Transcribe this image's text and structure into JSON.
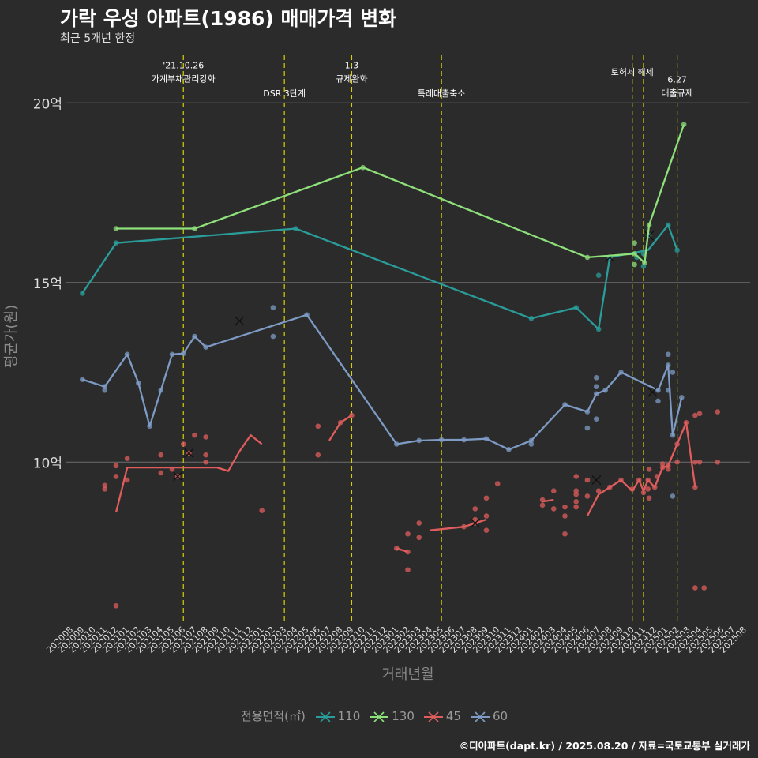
{
  "title": "가락 우성 아파트(1986) 매매가격 변화",
  "subtitle": "최근 5개년 한정",
  "caption": "©디아파트(dapt.kr) / 2025.08.20 / 자료=국토교통부 실거래가",
  "chart_data": {
    "type": "line",
    "xlabel": "거래년월",
    "ylabel": "평균가(원)",
    "y_unit": "억",
    "ylim": [
      5.5,
      21.5
    ],
    "yticks": [
      10,
      15,
      20
    ],
    "ytick_labels": [
      "10억",
      "15억",
      "20억"
    ],
    "x": [
      "202008",
      "202009",
      "202010",
      "202011",
      "202012",
      "202101",
      "202102",
      "202103",
      "202104",
      "202105",
      "202106",
      "202107",
      "202108",
      "202109",
      "202110",
      "202111",
      "202112",
      "202201",
      "202202",
      "202203",
      "202204",
      "202205",
      "202206",
      "202207",
      "202208",
      "202209",
      "202210",
      "202211",
      "202212",
      "202301",
      "202302",
      "202303",
      "202304",
      "202305",
      "202306",
      "202307",
      "202308",
      "202309",
      "202310",
      "202311",
      "202312",
      "202401",
      "202402",
      "202403",
      "202404",
      "202405",
      "202406",
      "202407",
      "202408",
      "202409",
      "202410",
      "202411",
      "202412",
      "202501",
      "202502",
      "202503",
      "202504",
      "202505",
      "202506",
      "202507",
      "202508"
    ],
    "grid": true,
    "legend": {
      "title": "전용면적(㎡)",
      "position": "bottom",
      "marker": "x"
    },
    "events": [
      {
        "x": 10.0,
        "label": "'21.10.26\n가계부채관리강화",
        "row": 0
      },
      {
        "x": 19.0,
        "label": "DSR 3단계",
        "row": 1
      },
      {
        "x": 25.0,
        "label": "1.3\n규제완화",
        "row": 0
      },
      {
        "x": 33.0,
        "label": "특례대출축소",
        "row": 1
      },
      {
        "x": 50.0,
        "label": "토허제 해제",
        "row": 0
      },
      {
        "x": 51.0,
        "label": "",
        "row": 0
      },
      {
        "x": 54.0,
        "label": "6.27\n대출규제",
        "row": 2
      }
    ],
    "series": [
      {
        "name": "110",
        "color": "#2a9d9a",
        "line": [
          [
            1,
            14.7
          ],
          [
            4,
            16.1
          ],
          [
            20,
            16.5
          ],
          [
            41,
            14
          ],
          [
            45,
            14.3
          ],
          [
            47,
            13.7
          ],
          [
            48,
            15.7
          ],
          [
            51.4,
            15.9
          ],
          [
            53.2,
            16.6
          ],
          [
            54,
            15.9
          ]
        ],
        "points": [
          [
            1,
            14.7
          ],
          [
            4,
            16.1
          ],
          [
            20,
            16.5
          ],
          [
            41,
            14
          ],
          [
            45,
            14.3
          ],
          [
            47,
            13.7
          ],
          [
            47,
            15.2
          ],
          [
            48,
            15.7
          ],
          [
            50.4,
            15.7
          ],
          [
            51,
            15.8
          ],
          [
            51,
            15.45
          ],
          [
            51.5,
            16.3
          ],
          [
            53.2,
            16.6
          ],
          [
            54,
            15.9
          ]
        ],
        "cross": [
          [
            51.5,
            16.3
          ],
          [
            48,
            15.7
          ]
        ]
      },
      {
        "name": "130",
        "color": "#8ee07a",
        "line": [
          [
            4,
            16.5
          ],
          [
            11,
            16.5
          ],
          [
            26,
            18.2
          ],
          [
            46,
            15.7
          ],
          [
            50.2,
            15.8
          ],
          [
            51.1,
            15.55
          ],
          [
            51.5,
            16.6
          ],
          [
            54.6,
            19.4
          ]
        ],
        "points": [
          [
            4,
            16.5
          ],
          [
            11,
            16.5
          ],
          [
            26,
            18.2
          ],
          [
            46,
            15.7
          ],
          [
            50.2,
            15.8
          ],
          [
            50.2,
            16.1
          ],
          [
            50.2,
            15.5
          ],
          [
            51.1,
            15.55
          ],
          [
            51.5,
            16.6
          ],
          [
            54.6,
            19.4
          ]
        ],
        "cross": []
      },
      {
        "name": "45",
        "color": "#e05d5d",
        "segments": [
          [
            [
              4,
              8.6
            ],
            [
              5,
              9.85
            ],
            [
              13,
              9.85
            ],
            [
              14,
              9.75
            ],
            [
              15,
              10.3
            ],
            [
              16,
              10.75
            ],
            [
              17,
              10.5
            ]
          ],
          [
            [
              23,
              10.6
            ],
            [
              24,
              11.1
            ],
            [
              25,
              11.3
            ]
          ],
          [
            [
              29,
              7.6
            ],
            [
              30,
              7.5
            ]
          ],
          [
            [
              32,
              8.1
            ],
            [
              35,
              8.2
            ],
            [
              36,
              8.3
            ],
            [
              37,
              8.4
            ]
          ],
          [
            [
              42,
              8.9
            ],
            [
              43,
              8.95
            ]
          ],
          [
            [
              46,
              8.5
            ],
            [
              47,
              9.1
            ],
            [
              48,
              9.3
            ],
            [
              49,
              9.5
            ],
            [
              50,
              9.2
            ],
            [
              50.6,
              9.5
            ],
            [
              51,
              9.2
            ],
            [
              51.4,
              9.5
            ],
            [
              52,
              9.3
            ],
            [
              52.7,
              9.85
            ],
            [
              53.2,
              9.9
            ],
            [
              54,
              10.5
            ],
            [
              54.8,
              11.1
            ],
            [
              55.6,
              9.3
            ]
          ]
        ],
        "points": [
          [
            3,
            9.35
          ],
          [
            3,
            9.25
          ],
          [
            4,
            9.9
          ],
          [
            4,
            9.6
          ],
          [
            4,
            6.0
          ],
          [
            5,
            10.1
          ],
          [
            5,
            9.5
          ],
          [
            8,
            10.2
          ],
          [
            8,
            9.7
          ],
          [
            9,
            9.8
          ],
          [
            9.5,
            9.6
          ],
          [
            10,
            10.5
          ],
          [
            10.5,
            10.25
          ],
          [
            11,
            10.75
          ],
          [
            12,
            10.7
          ],
          [
            12,
            10.2
          ],
          [
            12,
            10.0
          ],
          [
            17,
            8.65
          ],
          [
            22,
            11.0
          ],
          [
            22,
            10.2
          ],
          [
            24,
            11.1
          ],
          [
            25,
            11.3
          ],
          [
            29,
            7.6
          ],
          [
            30,
            7.5
          ],
          [
            30,
            7.0
          ],
          [
            30,
            8.0
          ],
          [
            31,
            8.3
          ],
          [
            31,
            7.9
          ],
          [
            35,
            8.2
          ],
          [
            36,
            8.7
          ],
          [
            36,
            8.4
          ],
          [
            36,
            8.3
          ],
          [
            37,
            8.5
          ],
          [
            37,
            8.1
          ],
          [
            37,
            9.0
          ],
          [
            38,
            9.4
          ],
          [
            42,
            8.8
          ],
          [
            42,
            8.95
          ],
          [
            43,
            9.2
          ],
          [
            43,
            8.7
          ],
          [
            44,
            8.5
          ],
          [
            44,
            8.0
          ],
          [
            44,
            8.75
          ],
          [
            45,
            8.9
          ],
          [
            45,
            9.1
          ],
          [
            45,
            8.75
          ],
          [
            45,
            9.6
          ],
          [
            45,
            9.2
          ],
          [
            46,
            9.05
          ],
          [
            46,
            9.5
          ],
          [
            47,
            9.2
          ],
          [
            48,
            9.3
          ],
          [
            49,
            9.5
          ],
          [
            50,
            9.25
          ],
          [
            50.6,
            9.5
          ],
          [
            51,
            9.15
          ],
          [
            51.4,
            9.5
          ],
          [
            51.4,
            9.25
          ],
          [
            51.5,
            9.8
          ],
          [
            51.5,
            9.0
          ],
          [
            52,
            9.3
          ],
          [
            52.2,
            9.6
          ],
          [
            52.7,
            9.85
          ],
          [
            52.7,
            9.95
          ],
          [
            53.2,
            9.9
          ],
          [
            53.2,
            9.8
          ],
          [
            54,
            10.0
          ],
          [
            54,
            10.5
          ],
          [
            54.8,
            11.1
          ],
          [
            55.6,
            9.3
          ],
          [
            55.6,
            10.0
          ],
          [
            55.6,
            11.3
          ],
          [
            55.6,
            6.5
          ],
          [
            56,
            10.0
          ],
          [
            56,
            11.35
          ],
          [
            56.4,
            6.5
          ],
          [
            57.6,
            10.0
          ],
          [
            57.6,
            11.4
          ]
        ],
        "cross": [
          [
            9.5,
            9.6
          ],
          [
            10.5,
            10.25
          ],
          [
            36,
            8.3
          ],
          [
            46.8,
            9.5
          ]
        ]
      },
      {
        "name": "60",
        "color": "#7d9bc4",
        "line": [
          [
            1,
            12.3
          ],
          [
            3,
            12.1
          ],
          [
            5,
            13
          ],
          [
            6,
            12.2
          ],
          [
            7,
            11
          ],
          [
            8,
            12
          ],
          [
            9,
            13
          ],
          [
            10,
            13.02
          ],
          [
            11,
            13.5
          ],
          [
            12,
            13.2
          ],
          [
            21,
            14.1
          ],
          [
            29,
            10.5
          ],
          [
            31,
            10.6
          ],
          [
            33,
            10.62
          ],
          [
            35,
            10.62
          ],
          [
            37,
            10.65
          ],
          [
            39,
            10.35
          ],
          [
            41,
            10.6
          ],
          [
            44,
            11.6
          ],
          [
            46,
            11.4
          ],
          [
            46.8,
            11.9
          ],
          [
            47.6,
            12.0
          ],
          [
            49,
            12.5
          ],
          [
            52.3,
            12.0
          ],
          [
            53.2,
            12.7
          ],
          [
            53.6,
            10.75
          ],
          [
            54.4,
            11.8
          ]
        ],
        "points": [
          [
            1,
            12.3
          ],
          [
            3,
            12.1
          ],
          [
            3,
            12.0
          ],
          [
            5,
            13
          ],
          [
            6,
            12.2
          ],
          [
            7,
            11
          ],
          [
            8,
            12
          ],
          [
            9,
            13
          ],
          [
            10,
            13.02
          ],
          [
            11,
            13.5
          ],
          [
            12,
            13.2
          ],
          [
            18,
            14.3
          ],
          [
            18,
            13.5
          ],
          [
            21,
            14.1
          ],
          [
            29,
            10.5
          ],
          [
            31,
            10.6
          ],
          [
            33,
            10.62
          ],
          [
            35,
            10.62
          ],
          [
            37,
            10.65
          ],
          [
            39,
            10.35
          ],
          [
            41,
            10.5
          ],
          [
            41,
            10.6
          ],
          [
            44,
            11.6
          ],
          [
            46,
            11.4
          ],
          [
            46,
            10.95
          ],
          [
            46.8,
            11.9
          ],
          [
            46.8,
            12.1
          ],
          [
            46.8,
            12.35
          ],
          [
            46.8,
            11.2
          ],
          [
            47.6,
            12.0
          ],
          [
            49,
            12.5
          ],
          [
            52.3,
            12.0
          ],
          [
            52.3,
            11.7
          ],
          [
            53.2,
            12.7
          ],
          [
            53.2,
            13.0
          ],
          [
            53.2,
            12.0
          ],
          [
            53.6,
            10.75
          ],
          [
            53.6,
            12.5
          ],
          [
            53.6,
            9.05
          ],
          [
            54.4,
            11.8
          ]
        ],
        "cross": [
          [
            15,
            13.93
          ],
          [
            51.8,
            11.95
          ]
        ]
      }
    ]
  }
}
